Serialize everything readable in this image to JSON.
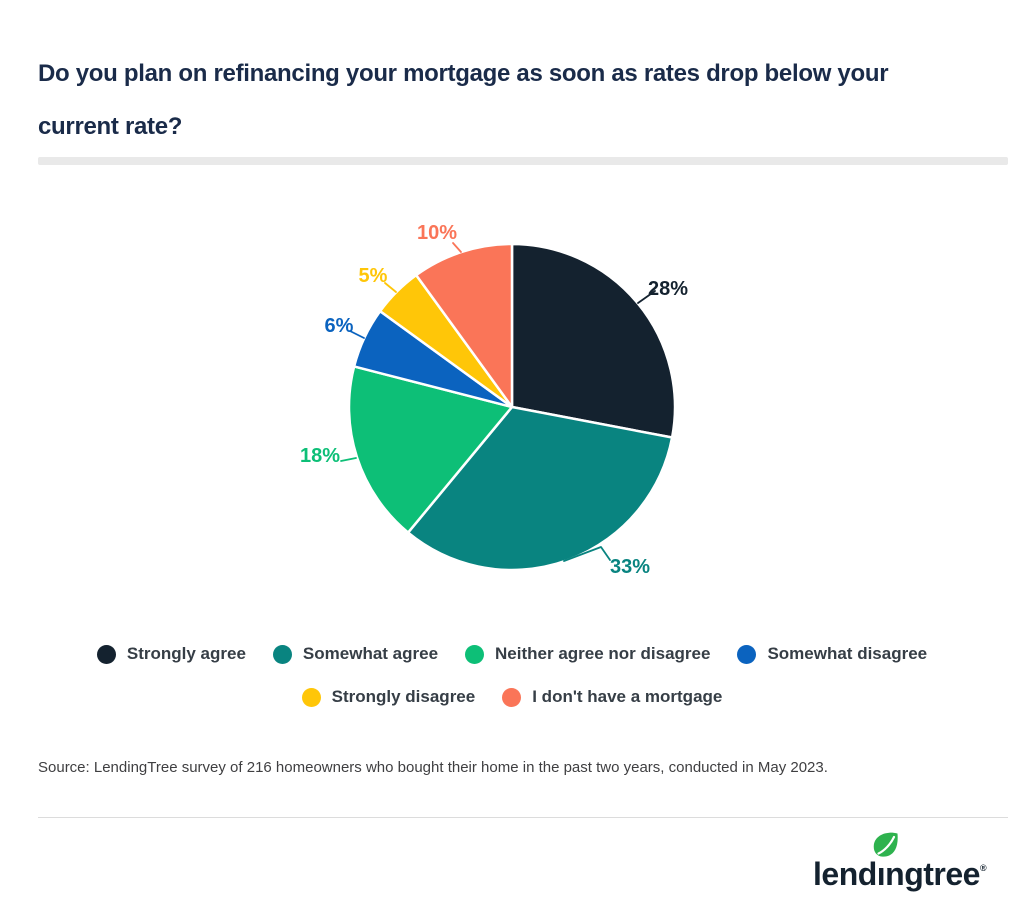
{
  "title_lines": [
    "Do you plan on refinancing your mortgage as soon as rates drop below your",
    "current rate?"
  ],
  "chart_data": {
    "type": "pie",
    "title": "Do you plan on refinancing your mortgage as soon as rates drop below your current rate?",
    "labels": [
      "Strongly agree",
      "Somewhat agree",
      "Neither agree nor disagree",
      "Somewhat disagree",
      "Strongly disagree",
      "I don't have a mortgage"
    ],
    "values": [
      28,
      33,
      18,
      6,
      5,
      10
    ],
    "data_labels": [
      "28%",
      "33%",
      "18%",
      "6%",
      "5%",
      "10%"
    ],
    "unit": "%",
    "colors": [
      "#14222F",
      "#098480",
      "#0DBF77",
      "#0B63BF",
      "#FFC608",
      "#FA7558"
    ],
    "start_angle": "12 o'clock",
    "direction": "clockwise",
    "legend_position": "bottom",
    "slice_border_color": "#ffffff"
  },
  "source_text": "Source: LendingTree survey of 216 homeowners who bought their home in the past two years, conducted in May 2023.",
  "logo": {
    "wordmark": "lendingtree",
    "registered": "®",
    "leaf_color": "#2EB24E",
    "wordmark_color": "#14222F"
  }
}
